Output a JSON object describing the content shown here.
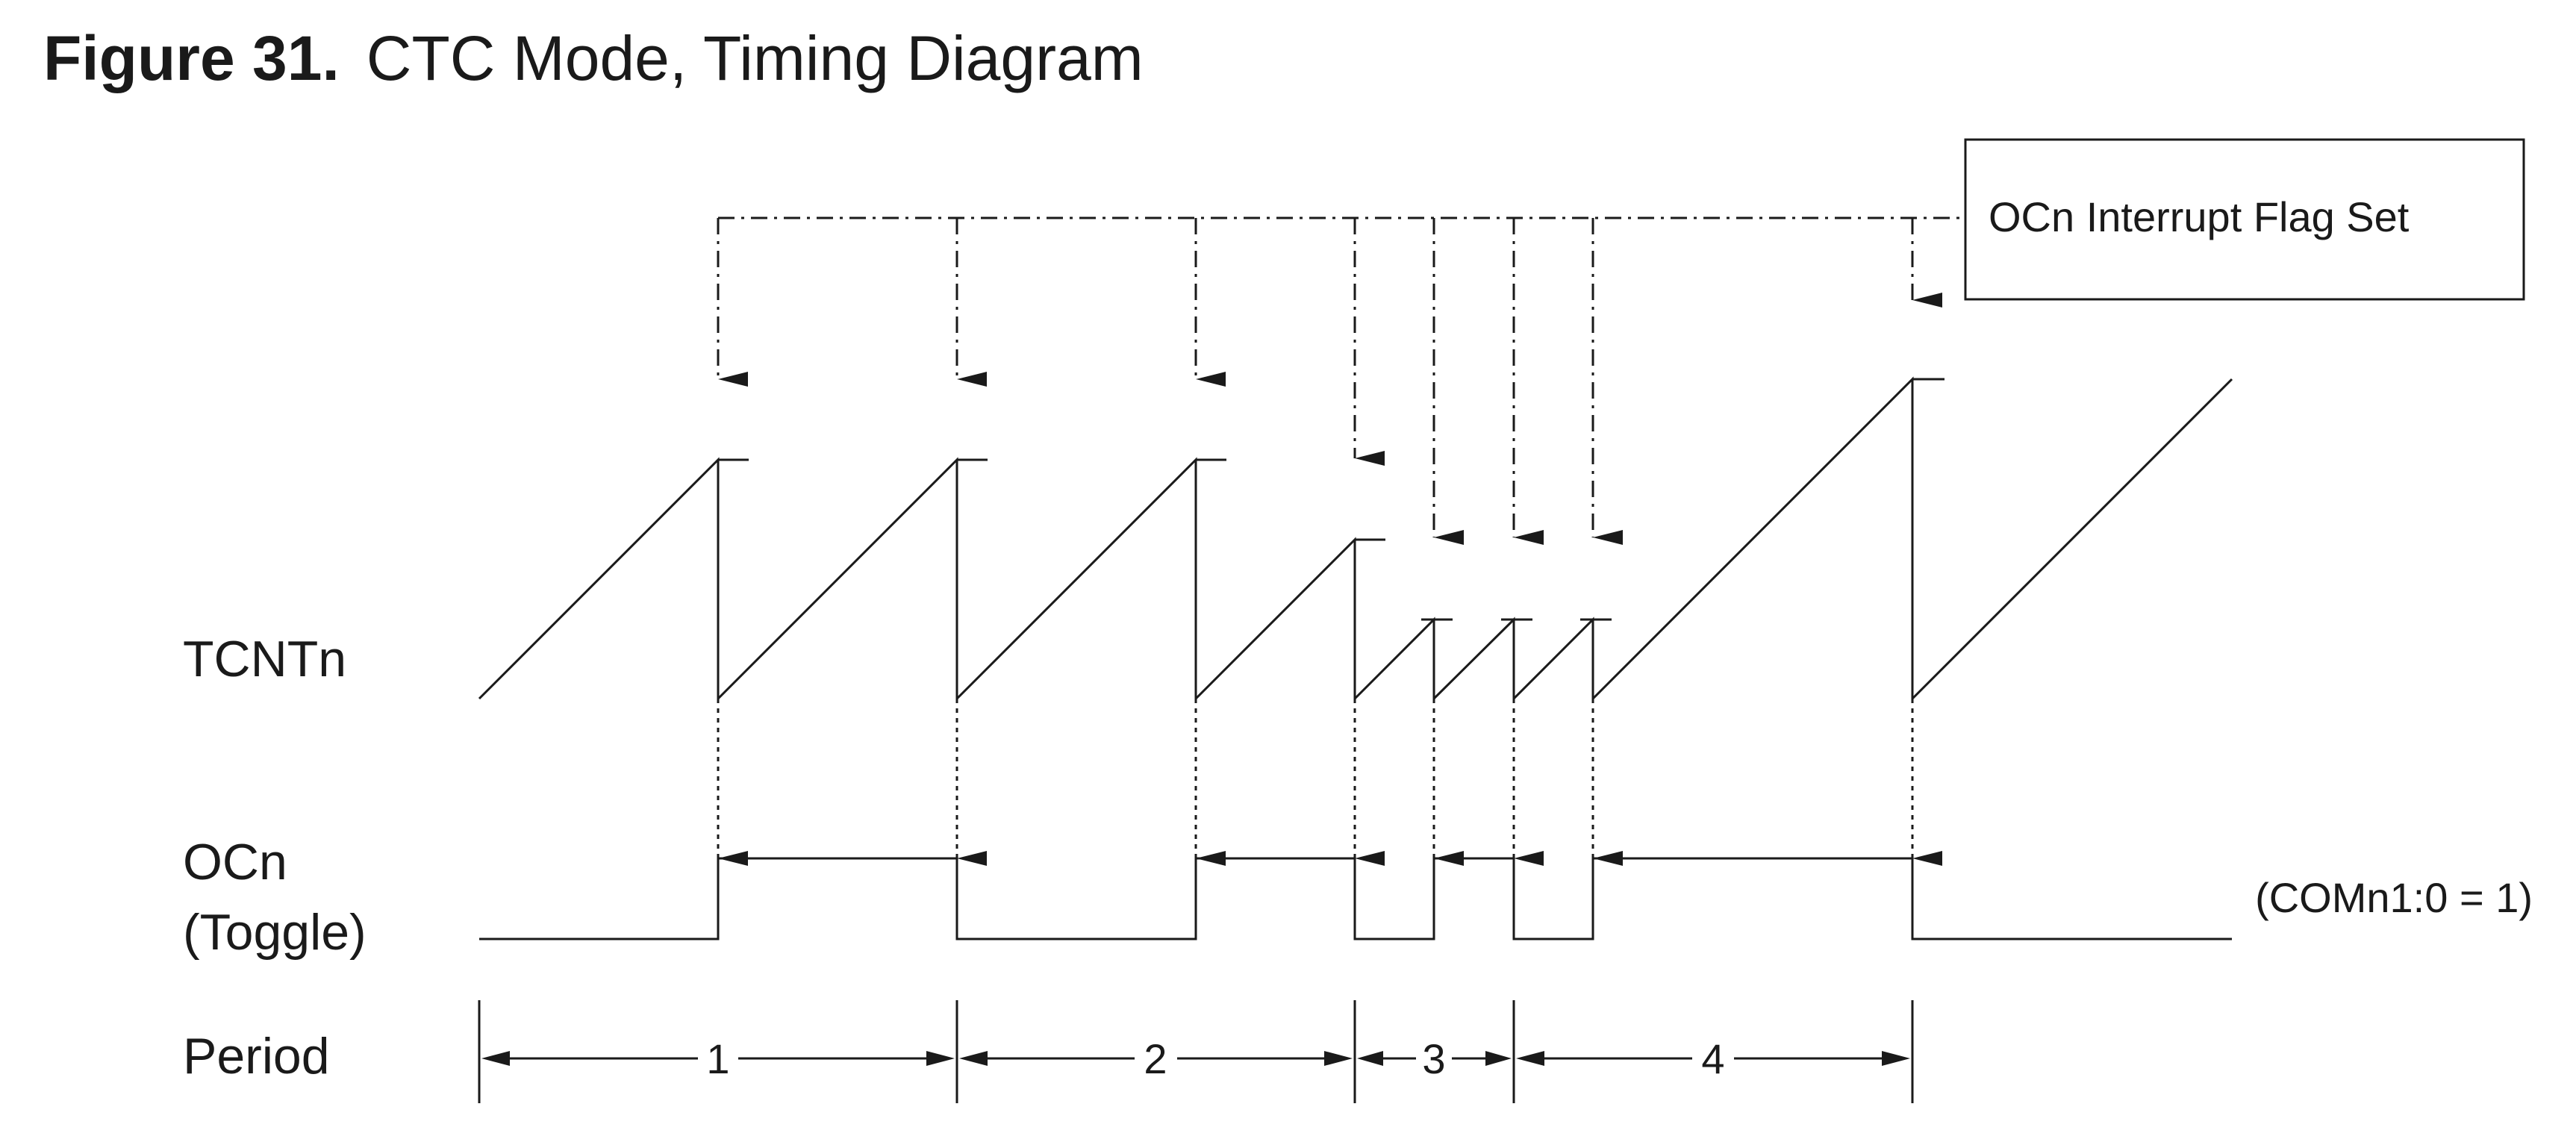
{
  "figure": {
    "number": "Figure 31.",
    "title": "CTC Mode, Timing Diagram"
  },
  "signals": {
    "tcnt": "TCNTn",
    "ocn_line1": "OCn",
    "ocn_line2": "(Toggle)",
    "period": "Period"
  },
  "callout": "OCn Interrupt Flag Set",
  "com_note": "(COMn1:0 = 1)",
  "periods": [
    "1",
    "2",
    "3",
    "4"
  ],
  "colors": {
    "ink": "#1a1a1a",
    "background": "#ffffff"
  }
}
